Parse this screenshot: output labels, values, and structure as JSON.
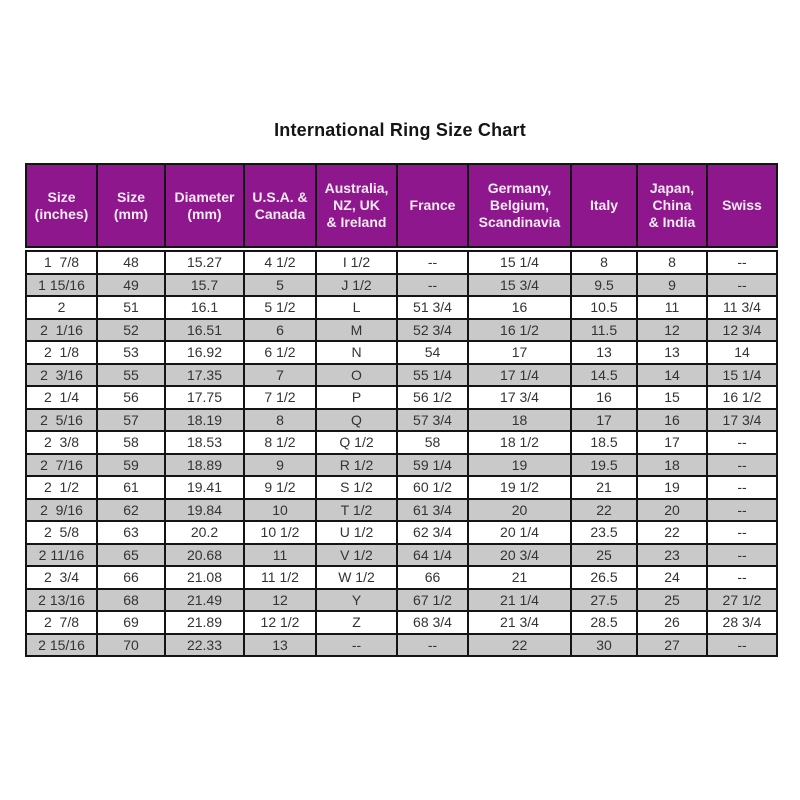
{
  "page": {
    "title": "International Ring Size Chart"
  },
  "colors": {
    "header_bg": "#8E178E",
    "header_text": "#F6EBF4",
    "row_bg": "#FFFFFF",
    "row_alt_bg": "#C9C9C9",
    "grid_line": "#141414",
    "body_text": "#333333",
    "title_text": "#151515"
  },
  "chart_data": {
    "type": "table",
    "title": "International Ring Size Chart",
    "layout": {
      "header_style": "solid purple band, white bold text, black grid lines",
      "alternating_rows": "odd rows white, even rows gray",
      "columns_count": 10,
      "rows_count": 18
    },
    "columns": [
      "Size\n(inches)",
      "Size\n(mm)",
      "Diameter\n(mm)",
      "U.S.A. &\nCanada",
      "Australia,\nNZ, UK\n& Ireland",
      "France",
      "Germany,\nBelgium,\nScandinavia",
      "Italy",
      "Japan,\nChina\n& India",
      "Swiss"
    ],
    "rows": [
      [
        "1  7/8",
        "48",
        "15.27",
        "4 1/2",
        "I 1/2",
        "--",
        "15 1/4",
        "8",
        "8",
        "--"
      ],
      [
        "1 15/16",
        "49",
        "15.7",
        "5",
        "J 1/2",
        "--",
        "15 3/4",
        "9.5",
        "9",
        "--"
      ],
      [
        "2",
        "51",
        "16.1",
        "5 1/2",
        "L",
        "51 3/4",
        "16",
        "10.5",
        "11",
        "11 3/4"
      ],
      [
        "2  1/16",
        "52",
        "16.51",
        "6",
        "M",
        "52 3/4",
        "16 1/2",
        "11.5",
        "12",
        "12 3/4"
      ],
      [
        "2  1/8",
        "53",
        "16.92",
        "6 1/2",
        "N",
        "54",
        "17",
        "13",
        "13",
        "14"
      ],
      [
        "2  3/16",
        "55",
        "17.35",
        "7",
        "O",
        "55 1/4",
        "17 1/4",
        "14.5",
        "14",
        "15 1/4"
      ],
      [
        "2  1/4",
        "56",
        "17.75",
        "7 1/2",
        "P",
        "56 1/2",
        "17 3/4",
        "16",
        "15",
        "16 1/2"
      ],
      [
        "2  5/16",
        "57",
        "18.19",
        "8",
        "Q",
        "57 3/4",
        "18",
        "17",
        "16",
        "17 3/4"
      ],
      [
        "2  3/8",
        "58",
        "18.53",
        "8 1/2",
        "Q 1/2",
        "58",
        "18 1/2",
        "18.5",
        "17",
        "--"
      ],
      [
        "2  7/16",
        "59",
        "18.89",
        "9",
        "R 1/2",
        "59 1/4",
        "19",
        "19.5",
        "18",
        "--"
      ],
      [
        "2  1/2",
        "61",
        "19.41",
        "9 1/2",
        "S 1/2",
        "60 1/2",
        "19 1/2",
        "21",
        "19",
        "--"
      ],
      [
        "2  9/16",
        "62",
        "19.84",
        "10",
        "T 1/2",
        "61 3/4",
        "20",
        "22",
        "20",
        "--"
      ],
      [
        "2  5/8",
        "63",
        "20.2",
        "10 1/2",
        "U 1/2",
        "62 3/4",
        "20 1/4",
        "23.5",
        "22",
        "--"
      ],
      [
        "2 11/16",
        "65",
        "20.68",
        "11",
        "V 1/2",
        "64 1/4",
        "20 3/4",
        "25",
        "23",
        "--"
      ],
      [
        "2  3/4",
        "66",
        "21.08",
        "11 1/2",
        "W 1/2",
        "66",
        "21",
        "26.5",
        "24",
        "--"
      ],
      [
        "2 13/16",
        "68",
        "21.49",
        "12",
        "Y",
        "67 1/2",
        "21 1/4",
        "27.5",
        "25",
        "27 1/2"
      ],
      [
        "2  7/8",
        "69",
        "21.89",
        "12 1/2",
        "Z",
        "68 3/4",
        "21 3/4",
        "28.5",
        "26",
        "28 3/4"
      ],
      [
        "2 15/16",
        "70",
        "22.33",
        "13",
        "--",
        "--",
        "22",
        "30",
        "27",
        "--"
      ]
    ]
  }
}
